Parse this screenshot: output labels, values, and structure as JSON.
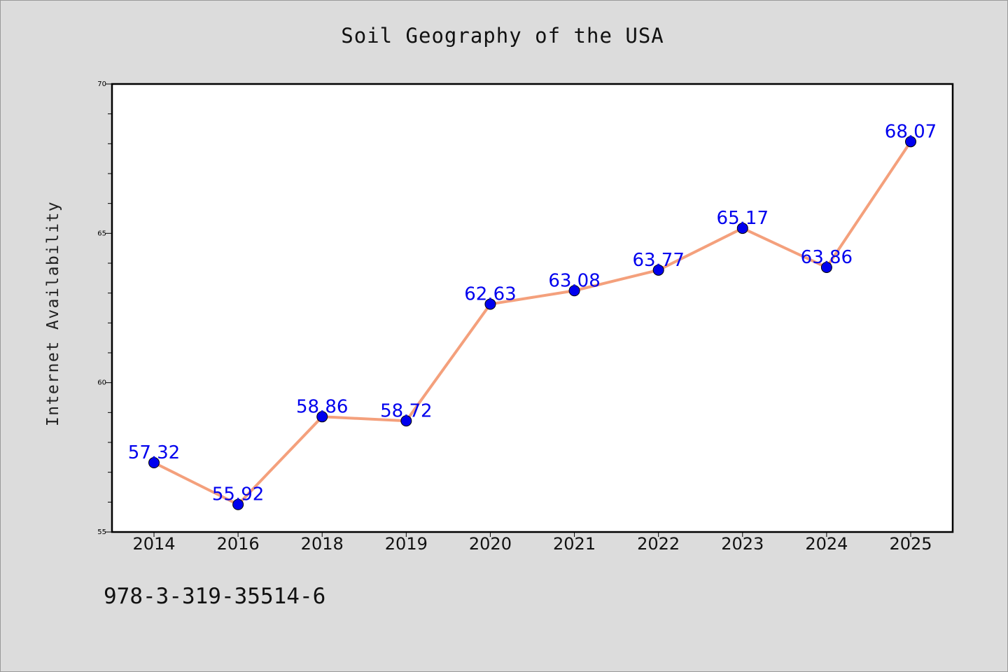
{
  "chart_data": {
    "type": "line",
    "title": "Soil Geography of the USA",
    "xlabel": "",
    "ylabel": "Internet Availability",
    "categories": [
      "2014",
      "2016",
      "2018",
      "2019",
      "2020",
      "2021",
      "2022",
      "2023",
      "2024",
      "2025"
    ],
    "series": [
      {
        "values": [
          57.32,
          55.92,
          58.86,
          58.72,
          62.63,
          63.08,
          63.77,
          65.17,
          63.86,
          68.07
        ],
        "labels": [
          "57.32",
          "55.92",
          "58.86",
          "58.72",
          "62.63",
          "63.08",
          "63.77",
          "65.17",
          "63.86",
          "68.07"
        ],
        "line_color": "#f4a07c",
        "marker_color": "#0000ee",
        "label_color": "#0000ee"
      }
    ],
    "ylim": [
      55,
      70
    ],
    "yticks": [
      55,
      60,
      65,
      70
    ],
    "ytick_labels": [
      "55",
      "60",
      "65",
      "70"
    ],
    "grid": false,
    "legend": "none"
  },
  "footer": {
    "code": "978-3-319-35514-6"
  },
  "colors": {
    "background": "#dcdcdc",
    "plot_background": "#ffffff",
    "axis": "#000000"
  }
}
